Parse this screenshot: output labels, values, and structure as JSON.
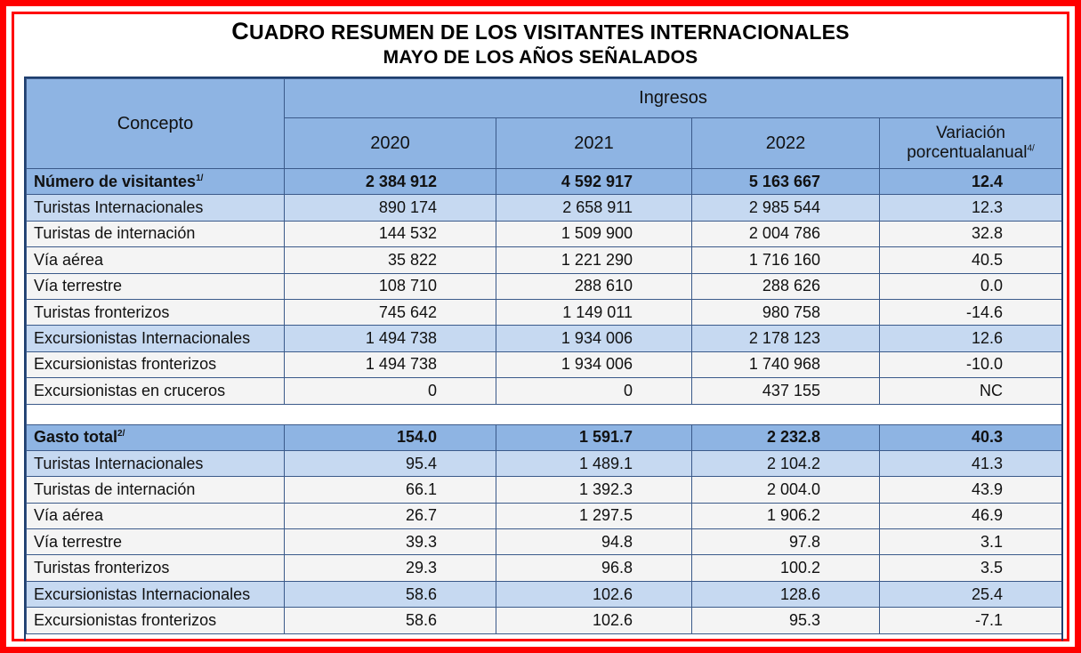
{
  "title": {
    "line1_first": "C",
    "line1_rest": "UADRO RESUMEN DE LOS VISITANTES INTERNACIONALES",
    "line2": "MAYO DE LOS AÑOS SEÑALADOS"
  },
  "header": {
    "concepto": "Concepto",
    "ingresos": "Ingresos",
    "years": [
      "2020",
      "2021",
      "2022"
    ],
    "variacion_line1": "Variación",
    "variacion_line2": "porcentualanual",
    "variacion_note": "4/"
  },
  "visitantes": {
    "total": {
      "label": "Número de visitantes",
      "note": "1/",
      "values": [
        "2 384 912",
        "4 592 917",
        "5 163 667",
        "12.4"
      ]
    },
    "rows": [
      {
        "label": "Turistas Internacionales",
        "values": [
          "890 174",
          "2 658 911",
          "2 985 544",
          "12.3"
        ]
      },
      {
        "label": "Turistas de internación",
        "values": [
          "144 532",
          "1 509 900",
          "2 004 786",
          "32.8"
        ]
      },
      {
        "label": "Vía aérea",
        "values": [
          "35 822",
          "1 221 290",
          "1 716 160",
          "40.5"
        ]
      },
      {
        "label": "Vía terrestre",
        "values": [
          "108 710",
          "288 610",
          "288 626",
          "0.0"
        ]
      },
      {
        "label": "Turistas fronterizos",
        "values": [
          "745 642",
          "1 149 011",
          "980 758",
          "-14.6"
        ]
      },
      {
        "label": "Excursionistas Internacionales",
        "values": [
          "1 494 738",
          "1 934 006",
          "2 178 123",
          "12.6"
        ]
      },
      {
        "label": "Excursionistas fronterizos",
        "values": [
          "1 494 738",
          "1 934 006",
          "1 740 968",
          "-10.0"
        ]
      },
      {
        "label": "Excursionistas en cruceros",
        "values": [
          "0",
          "0",
          "437 155",
          "NC"
        ]
      }
    ]
  },
  "gasto": {
    "total": {
      "label": "Gasto total",
      "note": "2/",
      "values": [
        "154.0",
        "1 591.7",
        "2 232.8",
        "40.3"
      ]
    },
    "rows": [
      {
        "label": "Turistas Internacionales",
        "values": [
          "95.4",
          "1 489.1",
          "2 104.2",
          "41.3"
        ]
      },
      {
        "label": "Turistas de internación",
        "values": [
          "66.1",
          "1 392.3",
          "2 004.0",
          "43.9"
        ]
      },
      {
        "label": "Vía aérea",
        "values": [
          "26.7",
          "1 297.5",
          "1 906.2",
          "46.9"
        ]
      },
      {
        "label": "Vía terrestre",
        "values": [
          "39.3",
          "94.8",
          "97.8",
          "3.1"
        ]
      },
      {
        "label": "Turistas fronterizos",
        "values": [
          "29.3",
          "96.8",
          "100.2",
          "3.5"
        ]
      },
      {
        "label": "Excursionistas Internacionales",
        "values": [
          "58.6",
          "102.6",
          "128.6",
          "25.4"
        ]
      },
      {
        "label": "Excursionistas fronterizos",
        "values": [
          "58.6",
          "102.6",
          "95.3",
          "-7.1"
        ]
      }
    ]
  },
  "colors": {
    "frame": "#ff0000",
    "header_blue": "#8eb4e3",
    "light_blue": "#c6d9f1",
    "row_gray": "#f4f4f4"
  }
}
